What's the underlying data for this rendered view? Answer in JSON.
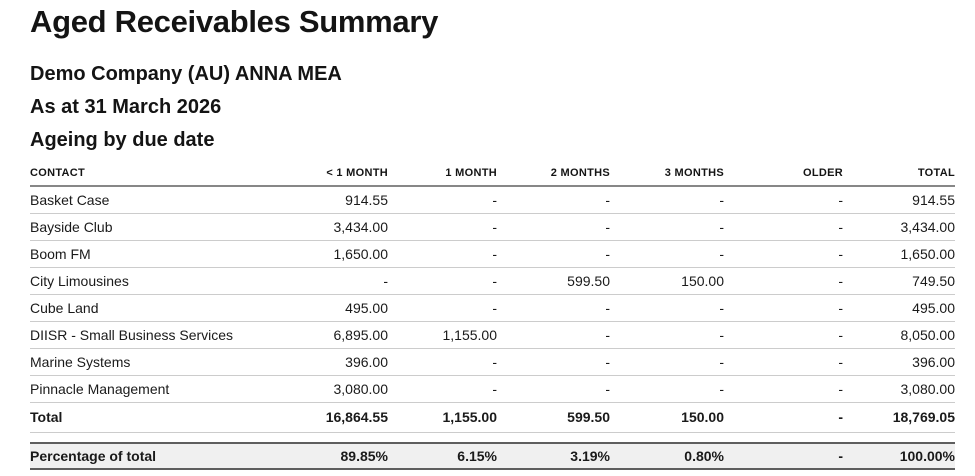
{
  "report": {
    "title": "Aged Receivables Summary",
    "company": "Demo Company (AU) ANNA MEA",
    "as_at": "As at 31 March 2026",
    "ageing_basis": "Ageing by due date"
  },
  "table": {
    "columns": [
      "CONTACT",
      "< 1 MONTH",
      "1 MONTH",
      "2 MONTHS",
      "3 MONTHS",
      "OLDER",
      "TOTAL"
    ],
    "rows": [
      {
        "contact": "Basket Case",
        "values": [
          "914.55",
          "-",
          "-",
          "-",
          "-",
          "914.55"
        ]
      },
      {
        "contact": "Bayside Club",
        "values": [
          "3,434.00",
          "-",
          "-",
          "-",
          "-",
          "3,434.00"
        ]
      },
      {
        "contact": "Boom FM",
        "values": [
          "1,650.00",
          "-",
          "-",
          "-",
          "-",
          "1,650.00"
        ]
      },
      {
        "contact": "City Limousines",
        "values": [
          "-",
          "-",
          "599.50",
          "150.00",
          "-",
          "749.50"
        ]
      },
      {
        "contact": "Cube Land",
        "values": [
          "495.00",
          "-",
          "-",
          "-",
          "-",
          "495.00"
        ]
      },
      {
        "contact": "DIISR - Small Business Services",
        "values": [
          "6,895.00",
          "1,155.00",
          "-",
          "-",
          "-",
          "8,050.00"
        ]
      },
      {
        "contact": "Marine Systems",
        "values": [
          "396.00",
          "-",
          "-",
          "-",
          "-",
          "396.00"
        ]
      },
      {
        "contact": "Pinnacle Management",
        "values": [
          "3,080.00",
          "-",
          "-",
          "-",
          "-",
          "3,080.00"
        ]
      }
    ],
    "total_row": {
      "label": "Total",
      "values": [
        "16,864.55",
        "1,155.00",
        "599.50",
        "150.00",
        "-",
        "18,769.05"
      ]
    },
    "percentage_row": {
      "label": "Percentage of total",
      "values": [
        "89.85%",
        "6.15%",
        "3.19%",
        "0.80%",
        "-",
        "100.00%"
      ]
    }
  },
  "colors": {
    "text": "#1a1a1a",
    "row_divider": "#cccccc",
    "header_divider": "#878787",
    "summary_border": "#5e5e5e",
    "summary_background": "#f0f0f0"
  }
}
